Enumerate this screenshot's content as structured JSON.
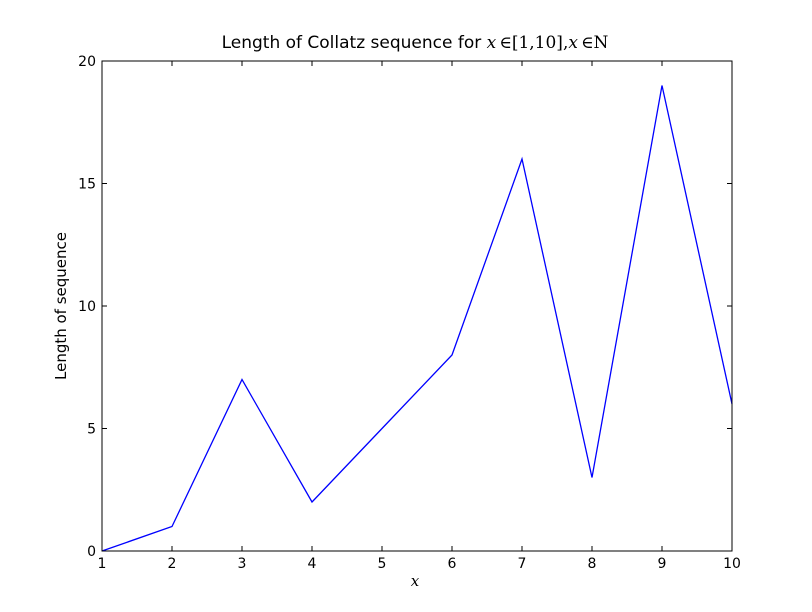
{
  "chart_data": {
    "type": "line",
    "title": {
      "text": "Length of Collatz sequence for ",
      "math_var": "x",
      "math_in_1": "∈",
      "math_range": "[1,10]",
      "math_comma": ",",
      "math_var_2": "x",
      "math_in_2": "∈",
      "math_set": "N"
    },
    "xlabel": "x",
    "ylabel": "Length of sequence",
    "xlim": [
      1,
      10
    ],
    "ylim": [
      0,
      20
    ],
    "xticks": [
      1,
      2,
      3,
      4,
      5,
      6,
      7,
      8,
      9,
      10
    ],
    "yticks": [
      0,
      5,
      10,
      15,
      20
    ],
    "grid": false,
    "legend": "none",
    "series": [
      {
        "color": "#0000ff",
        "x": [
          1,
          2,
          3,
          4,
          5,
          6,
          7,
          8,
          9,
          10
        ],
        "y": [
          0,
          1,
          7,
          2,
          5,
          8,
          16,
          3,
          19,
          6
        ]
      }
    ]
  }
}
